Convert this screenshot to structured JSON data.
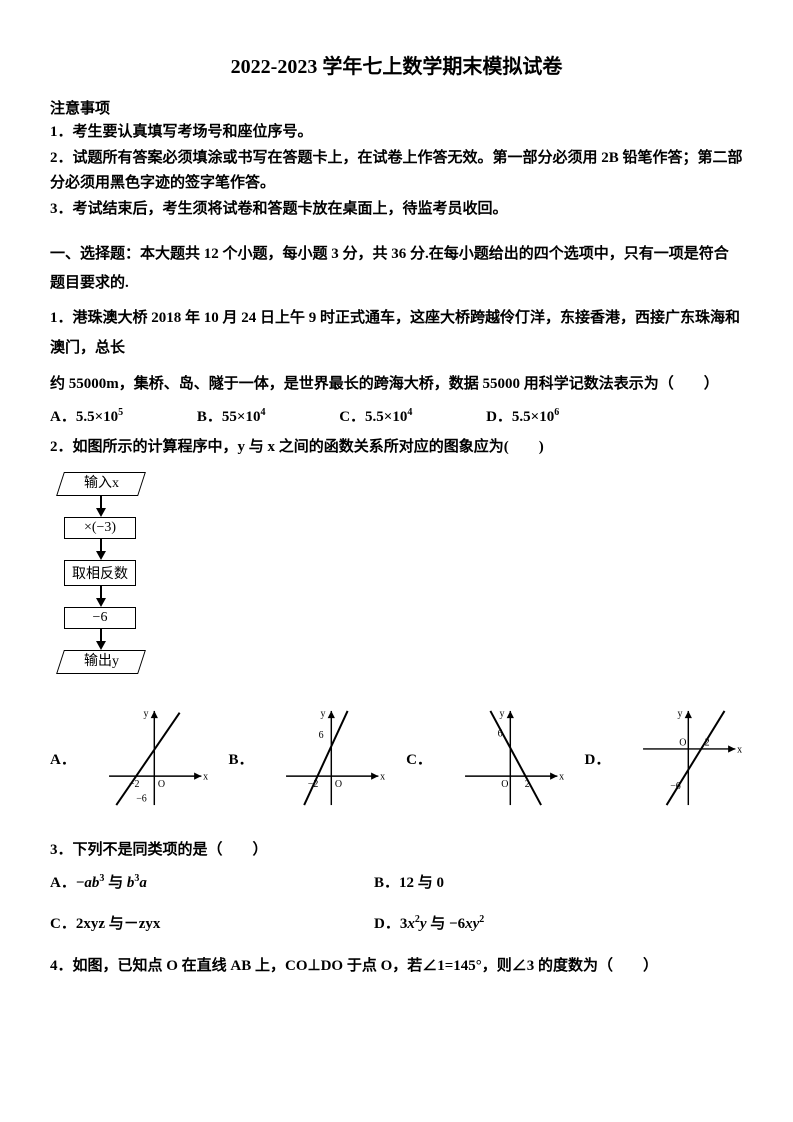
{
  "title": "2022-2023 学年七上数学期末模拟试卷",
  "notice_header": "注意事项",
  "notices": {
    "n1": "1．考生要认真填写考场号和座位序号。",
    "n2": "2．试题所有答案必须填涂或书写在答题卡上，在试卷上作答无效。第一部分必须用 2B 铅笔作答；第二部分必须用黑色字迹的签字笔作答。",
    "n3": "3．考试结束后，考生须将试卷和答题卡放在桌面上，待监考员收回。"
  },
  "section1": "一、选择题：本大题共 12 个小题，每小题 3 分，共 36 分.在每小题给出的四个选项中，只有一项是符合题目要求的.",
  "q1": {
    "text_a": "1．港珠澳大桥 2018 年 10 月 24 日上午 9 时正式通车，这座大桥跨越伶仃洋，东接香港，西接广东珠海和澳门，总长",
    "text_b": "约 55000m，集桥、岛、隧于一体，是世界最长的跨海大桥，数据 55000 用科学记数法表示为（　　）",
    "A_prefix": "A．5.5×10",
    "A_sup": "5",
    "B_prefix": "B．55×10",
    "B_sup": "4",
    "C_prefix": "C．5.5×10",
    "C_sup": "4",
    "D_prefix": "D．5.5×10",
    "D_sup": "6"
  },
  "q2": {
    "text": "2．如图所示的计算程序中，y 与 x 之间的函数关系所对应的图象应为(　　)",
    "flow": {
      "in": "输入x",
      "step1": "×(−3)",
      "step2": "取相反数",
      "step3": "−6",
      "out": "输出y"
    },
    "labels": {
      "A": "A．",
      "B": "B．",
      "C": "C．",
      "D": "D．"
    },
    "axis": {
      "y": "y",
      "x": "x",
      "neg2": "−2",
      "pos2": "2",
      "six": "6",
      "negsix": "−6",
      "O": "O"
    },
    "style": {
      "stroke": "#000000",
      "stroke_width": 1.6,
      "fontsize": 11
    }
  },
  "q3": {
    "text": "3．下列不是同类项的是（　　）",
    "A": "A．",
    "A_expr_html": "−<span class='math-i'>ab</span><sup>3</sup> 与 <span class='math-i'>b</span><sup>3</sup><span class='math-i'>a</span>",
    "B": "B．12 与 0",
    "C": "C．2xyz 与－zyx",
    "D": "D．",
    "D_expr_html": "3<span class='math-i'>x</span><sup>2</sup><span class='math-i'>y</span> 与 −6<span class='math-i'>xy</span><sup>2</sup>"
  },
  "q4": {
    "text": "4．如图，已知点 O 在直线 AB 上，CO⊥DO 于点 O，若∠1=145°，则∠3 的度数为（　　）"
  }
}
